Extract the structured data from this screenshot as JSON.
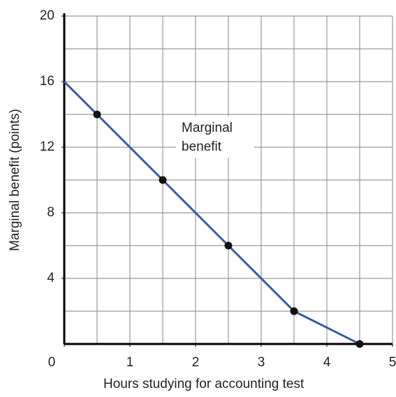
{
  "chart_data": {
    "type": "line",
    "xlabel": "Hours studying for accounting test",
    "ylabel": "Marginal benefit  (points)",
    "annotation": [
      "Marginal",
      "benefit"
    ],
    "xlim": [
      0,
      5
    ],
    "ylim": [
      0,
      20
    ],
    "xticks": [
      0,
      1,
      2,
      3,
      4,
      5
    ],
    "yticks": [
      4,
      8,
      12,
      16,
      20
    ],
    "grid": true,
    "xminor": 0.5,
    "yminor": 2,
    "series": [
      {
        "x": [
          0,
          0.5,
          1.5,
          2.5,
          3.5,
          4.5
        ],
        "values": [
          16,
          14,
          10,
          6,
          2,
          0
        ],
        "color": "#3b5b9e",
        "markers": false
      },
      {
        "x": [
          0.5,
          1.5,
          2.5,
          3.5,
          4.5
        ],
        "values": [
          14,
          10,
          6,
          2,
          0
        ],
        "color": "#111111",
        "markers": true
      }
    ]
  }
}
